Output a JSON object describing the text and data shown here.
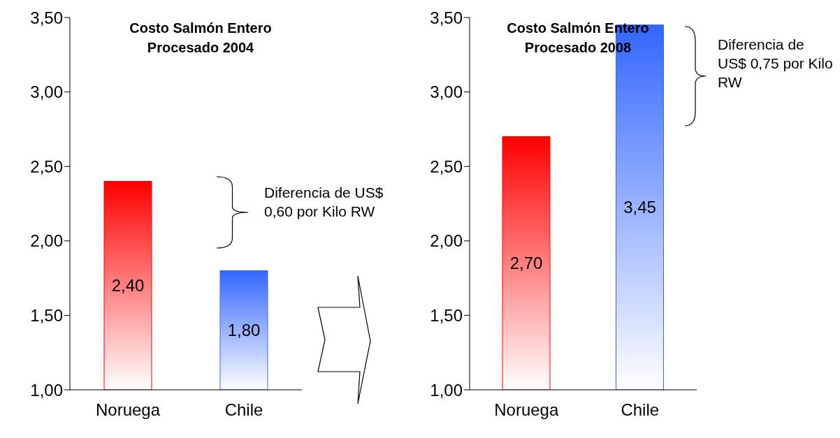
{
  "chart_data": [
    {
      "type": "bar",
      "title": "Costo Salmón Entero Procesado 2004",
      "categories": [
        "Noruega",
        "Chile"
      ],
      "values": [
        2.4,
        1.8
      ],
      "colors": [
        "#ff0000",
        "#3366ff"
      ],
      "value_labels": [
        "2,40",
        "1,80"
      ],
      "ylim": [
        1,
        3.5
      ],
      "yticks": [
        {
          "value": 1,
          "label": "1,00"
        },
        {
          "value": 1.5,
          "label": "1,50"
        },
        {
          "value": 2,
          "label": "2,00"
        },
        {
          "value": 2.5,
          "label": "2,50"
        },
        {
          "value": 3,
          "label": "3,00"
        },
        {
          "value": 3.5,
          "label": "3,50"
        }
      ],
      "annotations": [
        "Diferencia de US$ 0,60 por Kilo RW"
      ]
    },
    {
      "type": "bar",
      "title": "Costo Salmón Entero Procesado 2008",
      "categories": [
        "Noruega",
        "Chile"
      ],
      "values": [
        2.7,
        3.45
      ],
      "colors": [
        "#ff0000",
        "#3366ff"
      ],
      "value_labels": [
        "2,70",
        "3,45"
      ],
      "ylim": [
        1,
        3.5
      ],
      "yticks": [
        {
          "value": 1,
          "label": "1,00"
        },
        {
          "value": 1.5,
          "label": "1,50"
        },
        {
          "value": 2,
          "label": "2,00"
        },
        {
          "value": 2.5,
          "label": "2,50"
        },
        {
          "value": 3,
          "label": "3,00"
        },
        {
          "value": 3.5,
          "label": "3,50"
        }
      ],
      "annotations": [
        "Diferencia de US$ 0,75 por Kilo RW"
      ]
    }
  ]
}
